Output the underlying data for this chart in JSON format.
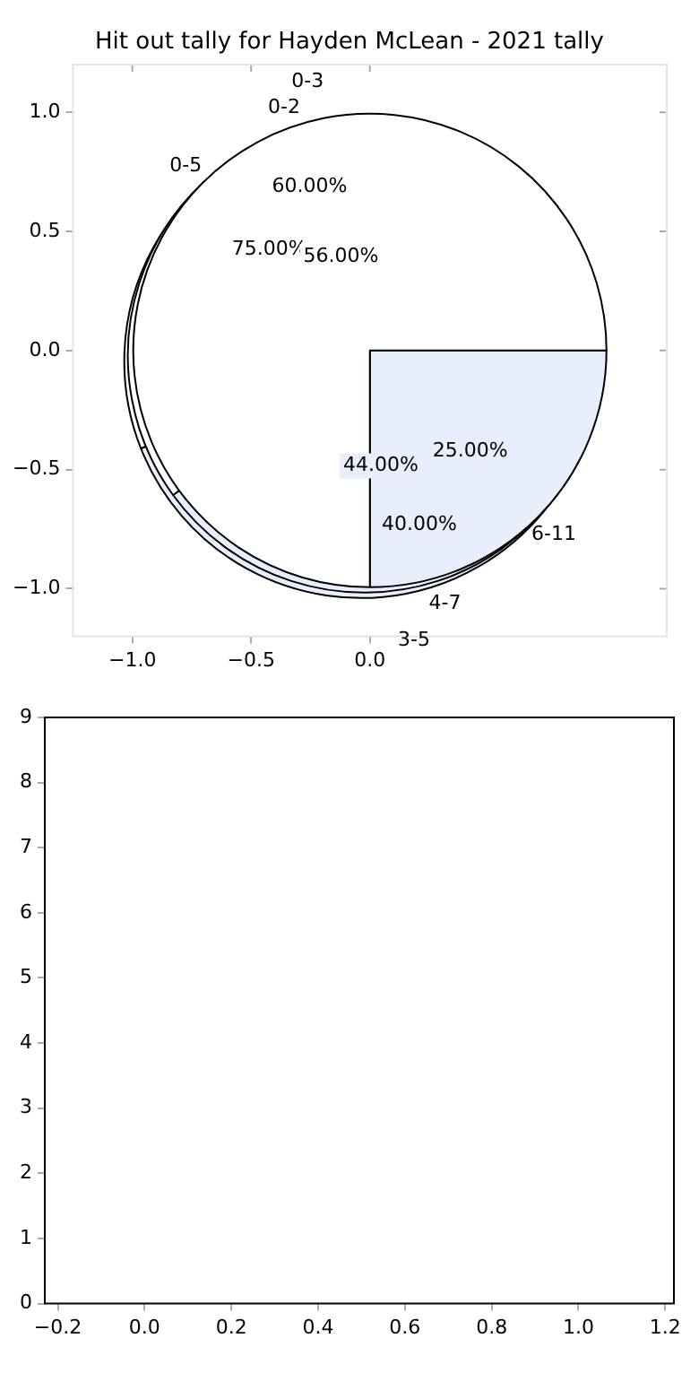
{
  "chart_data": [
    {
      "type": "scatter",
      "title": "Hit out tally for Hayden McLean - 2021 tally",
      "xlim": [
        -1.25,
        1.25
      ],
      "xticks": [
        {
          "value": -1,
          "label": "−1.0"
        },
        {
          "value": -0.5,
          "label": "−0.5"
        },
        {
          "value": 0,
          "label": "0.0"
        }
      ],
      "ylim": [
        -1.2,
        1.2
      ],
      "yticks": [
        {
          "value": -1,
          "label": "−1.0"
        },
        {
          "value": -0.5,
          "label": "−0.5"
        },
        {
          "value": 0,
          "label": "0.0"
        },
        {
          "value": 0.5,
          "label": "0.5"
        },
        {
          "value": 1,
          "label": "1.0"
        }
      ]
    },
    {
      "type": "pie",
      "categories": [
        "0-5",
        "6-11"
      ],
      "values": [
        75,
        25
      ],
      "value_labels": [
        "75.00%",
        "25.00%"
      ],
      "colors": [
        "#ffffff",
        "#e8eefb"
      ]
    },
    {
      "type": "pie",
      "categories": [
        "0-2",
        "4-7"
      ],
      "values": [
        60,
        40
      ],
      "value_labels": [
        "60.00%",
        "40.00%"
      ],
      "colors": [
        "#ffffff",
        "#e8eefb"
      ]
    },
    {
      "type": "pie",
      "categories": [
        "0-3",
        "3-5"
      ],
      "values": [
        56,
        44
      ],
      "value_labels": [
        "56.00%",
        "44.00%"
      ],
      "colors": [
        "#ffffff",
        "#e8eefb"
      ]
    },
    {
      "type": "scatter",
      "xlim": [
        -0.23,
        1.22
      ],
      "xticks": [
        {
          "value": -0.2,
          "label": "−0.2"
        },
        {
          "value": 0,
          "label": "0.0"
        },
        {
          "value": 0.2,
          "label": "0.2"
        },
        {
          "value": 0.4,
          "label": "0.4"
        },
        {
          "value": 0.6,
          "label": "0.6"
        },
        {
          "value": 0.8,
          "label": "0.8"
        },
        {
          "value": 1,
          "label": "1.0"
        },
        {
          "value": 1.2,
          "label": "1.2"
        }
      ],
      "ylim": [
        0,
        9
      ],
      "yticks": [
        0,
        1,
        2,
        3,
        4,
        5,
        6,
        7,
        8,
        9
      ]
    }
  ]
}
